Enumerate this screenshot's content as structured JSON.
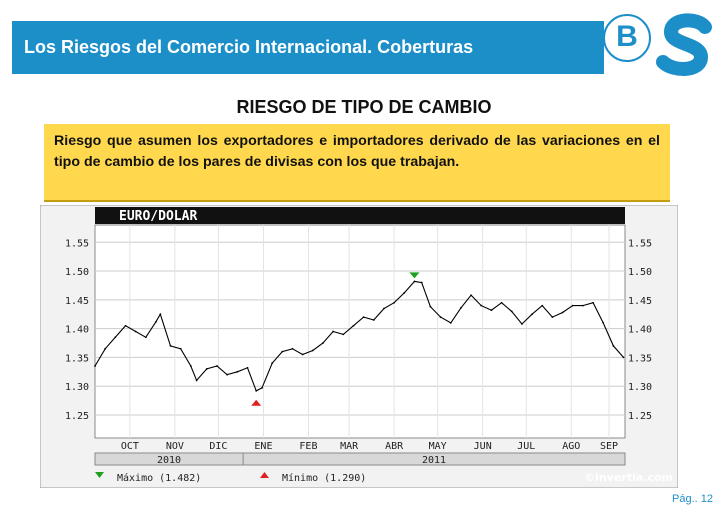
{
  "header": {
    "title": "Los Riesgos del Comercio Internacional. Coberturas",
    "logo_letter": "B"
  },
  "section": {
    "title": "RIESGO DE TIPO DE CAMBIO"
  },
  "definition": {
    "text": "Riesgo que asumen los exportadores e importadores derivado de las variaciones en el tipo de cambio de los pares de divisas con los que trabajan."
  },
  "footer": {
    "page": "Pág.. 12"
  },
  "chart_data": {
    "type": "line",
    "title": "EURO/DOLAR",
    "y_ticks": [
      "1.55",
      "1.50",
      "1.45",
      "1.40",
      "1.35",
      "1.30",
      "1.25"
    ],
    "ylim": [
      1.21,
      1.58
    ],
    "x_ticks": [
      "OCT",
      "NOV",
      "DIC",
      "ENE",
      "FEB",
      "MAR",
      "ABR",
      "MAY",
      "JUN",
      "JUL",
      "AGO",
      "SEP"
    ],
    "year_labels": [
      "2010",
      "2011"
    ],
    "max_label": "Máximo (1.482)",
    "min_label": "Mínimo (1.290)",
    "watermark": "©Invertia.com",
    "series": [
      {
        "x": [
          "2010-09-21",
          "2010-09-28",
          "2010-10-05",
          "2010-10-12",
          "2010-10-19",
          "2010-10-26",
          "2010-11-02",
          "2010-11-05",
          "2010-11-12",
          "2010-11-19",
          "2010-11-26",
          "2010-11-30",
          "2010-12-07",
          "2010-12-14",
          "2010-12-21",
          "2010-12-28",
          "2011-01-04",
          "2011-01-10",
          "2011-01-14",
          "2011-01-21",
          "2011-01-28",
          "2011-02-04",
          "2011-02-11",
          "2011-02-18",
          "2011-02-25",
          "2011-03-04",
          "2011-03-11",
          "2011-03-18",
          "2011-03-25",
          "2011-04-01",
          "2011-04-08",
          "2011-04-15",
          "2011-04-22",
          "2011-04-29",
          "2011-05-04",
          "2011-05-10",
          "2011-05-17",
          "2011-05-24",
          "2011-05-31",
          "2011-06-07",
          "2011-06-14",
          "2011-06-21",
          "2011-06-28",
          "2011-07-05",
          "2011-07-12",
          "2011-07-19",
          "2011-07-26",
          "2011-08-02",
          "2011-08-09",
          "2011-08-16",
          "2011-08-23",
          "2011-08-30",
          "2011-09-06",
          "2011-09-13",
          "2011-09-20"
        ],
        "y": [
          1.335,
          1.365,
          1.385,
          1.405,
          1.395,
          1.385,
          1.412,
          1.425,
          1.37,
          1.365,
          1.335,
          1.31,
          1.33,
          1.335,
          1.32,
          1.325,
          1.332,
          1.292,
          1.297,
          1.34,
          1.36,
          1.365,
          1.355,
          1.362,
          1.375,
          1.395,
          1.39,
          1.405,
          1.42,
          1.415,
          1.435,
          1.445,
          1.462,
          1.482,
          1.48,
          1.438,
          1.42,
          1.41,
          1.436,
          1.458,
          1.44,
          1.432,
          1.445,
          1.43,
          1.408,
          1.425,
          1.44,
          1.42,
          1.428,
          1.44,
          1.44,
          1.445,
          1.41,
          1.37,
          1.35
        ]
      }
    ]
  }
}
